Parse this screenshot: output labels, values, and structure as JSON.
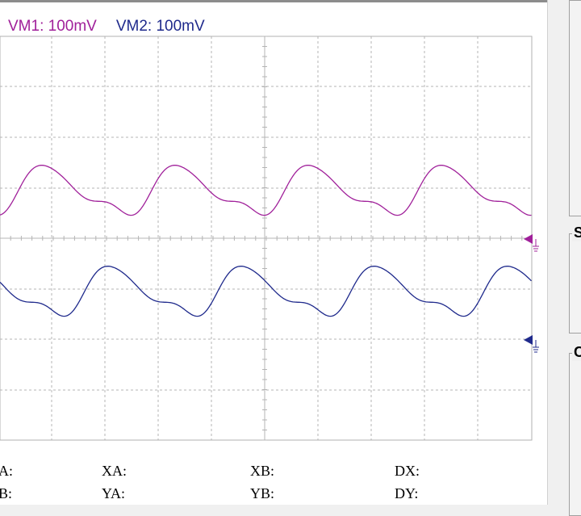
{
  "scope": {
    "channel_labels": {
      "vm1": "VM1: 100mV",
      "vm2": "VM2: 100mV"
    },
    "colors": {
      "vm1": "#a0209a",
      "vm2": "#1f2a8c",
      "grid": "#b4b4b4"
    },
    "markers": {
      "vm1_ground": "ground-marker",
      "vm2_ground": "ground-marker"
    }
  },
  "readouts": {
    "col1": {
      "a": "A:",
      "b": "B:"
    },
    "col2": {
      "a": "XA:",
      "b": "YA:"
    },
    "col3": {
      "a": "XB:",
      "b": "YB:"
    },
    "col4": {
      "a": "DX:",
      "b": "DY:"
    }
  },
  "sidebar": {
    "section2_letter": "S",
    "section3_letter": "C"
  }
}
